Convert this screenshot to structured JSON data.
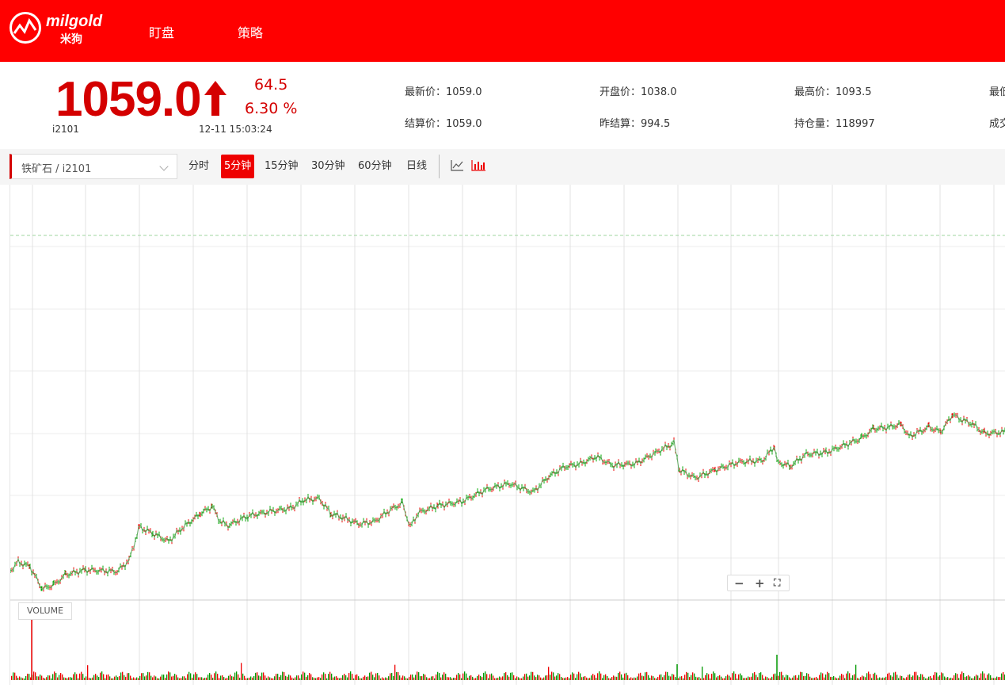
{
  "header": {
    "logo_text": "milgold",
    "logo_sub": "米狗",
    "nav": [
      "盯盘",
      "策略"
    ]
  },
  "quote": {
    "price": "1059.0",
    "change": "64.5",
    "change_pct": "6.30 %",
    "symbol": "i2101",
    "timestamp": "12-11 15:03:24",
    "stats": [
      {
        "label": "最新价：",
        "value": "1059.0"
      },
      {
        "label": "开盘价：",
        "value": "1038.0"
      },
      {
        "label": "最高价：",
        "value": "1093.5"
      },
      {
        "label": "最低",
        "value": ""
      },
      {
        "label": "结算价：",
        "value": "1059.0"
      },
      {
        "label": "昨结算：",
        "value": "994.5"
      },
      {
        "label": "持仓量：",
        "value": "118997"
      },
      {
        "label": "成交",
        "value": ""
      }
    ],
    "up_color": "#d40000"
  },
  "toolbar": {
    "selector": "铁矿石 / i2101",
    "periods": [
      "分时",
      "5分钟",
      "15分钟",
      "30分钟",
      "60分钟",
      "日线"
    ],
    "active_period": "5分钟",
    "icons": [
      "line-chart-icon",
      "candlestick-chart-icon"
    ]
  },
  "chart": {
    "zoom": [
      "−",
      "+",
      "⛶"
    ],
    "volume_label": "VOLUME"
  }
}
